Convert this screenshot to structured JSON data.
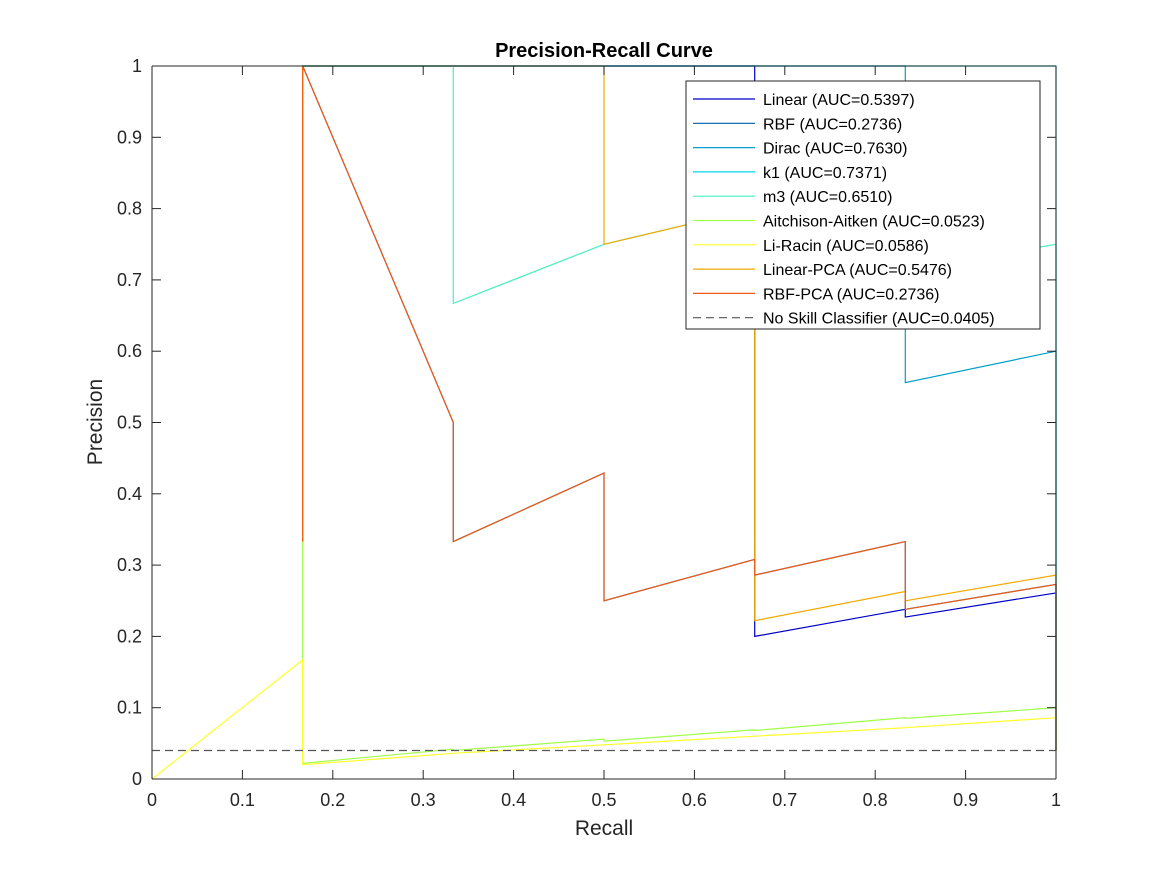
{
  "chart_data": {
    "type": "line",
    "title": "Precision-Recall Curve",
    "xlabel": "Recall",
    "ylabel": "Precision",
    "xlim": [
      0,
      1
    ],
    "ylim": [
      0,
      1
    ],
    "xticks": [
      "0",
      "0.1",
      "0.2",
      "0.3",
      "0.4",
      "0.5",
      "0.6",
      "0.7",
      "0.8",
      "0.9",
      "1"
    ],
    "yticks": [
      "0",
      "0.1",
      "0.2",
      "0.3",
      "0.4",
      "0.5",
      "0.6",
      "0.7",
      "0.8",
      "0.9",
      "1"
    ],
    "grid": false,
    "legend_position": "top-right",
    "series": [
      {
        "name": "Linear (AUC=0.5397)",
        "color": "#0000c8",
        "dash": false,
        "x": [
          0.1667,
          0.1667,
          0.3333,
          0.3333,
          0.5,
          0.5,
          0.6667,
          0.6667,
          0.8333,
          0.8333,
          1.0,
          1.0
        ],
        "y": [
          0.333,
          1.0,
          1.0,
          1.0,
          1.0,
          1.0,
          1.0,
          0.2,
          0.238,
          0.227,
          0.261,
          0.04
        ]
      },
      {
        "name": "RBF (AUC=0.2736)",
        "color": "#005faa",
        "dash": false,
        "x": [
          0.1667,
          0.1667,
          0.3333,
          0.3333,
          0.5,
          0.5,
          0.6667,
          0.6667,
          0.8333,
          0.8333,
          1.0,
          1.0
        ],
        "y": [
          0.333,
          1.0,
          0.5,
          0.333,
          0.429,
          0.25,
          0.308,
          0.286,
          0.333,
          0.238,
          0.273,
          0.04
        ]
      },
      {
        "name": "Dirac (AUC=0.7630)",
        "color": "#00a0c8",
        "dash": false,
        "x": [
          0.1667,
          0.1667,
          0.3333,
          0.3333,
          0.5,
          0.5,
          0.6667,
          0.6667,
          0.8333,
          0.8333,
          1.0,
          1.0
        ],
        "y": [
          0.333,
          1.0,
          1.0,
          1.0,
          1.0,
          1.0,
          1.0,
          1.0,
          1.0,
          0.556,
          0.6,
          0.04
        ]
      },
      {
        "name": "k1 (AUC=0.7371)",
        "color": "#00d7e6",
        "dash": false,
        "x": [
          0.1667,
          0.1667,
          0.3333,
          0.3333,
          0.5,
          0.5,
          0.6667,
          0.6667,
          0.8333,
          0.8333,
          1.0,
          1.0
        ],
        "y": [
          0.333,
          1.0,
          1.0,
          1.0,
          1.0,
          1.0,
          1.0,
          1.0,
          1.0,
          1.0,
          1.0,
          0.04
        ]
      },
      {
        "name": "m3 (AUC=0.6510)",
        "color": "#46f0be",
        "dash": false,
        "x": [
          0.1667,
          0.1667,
          0.3333,
          0.3333,
          0.5,
          0.5,
          0.6667,
          0.6667,
          0.8333,
          0.8333,
          1.0,
          1.0
        ],
        "y": [
          0.333,
          1.0,
          1.0,
          0.667,
          0.75,
          0.75,
          0.8,
          0.8,
          0.833,
          0.714,
          0.75,
          0.04
        ]
      },
      {
        "name": "Aitchison-Aitken (AUC=0.0523)",
        "color": "#a0ff46",
        "dash": false,
        "x": [
          0.1667,
          0.1667,
          0.3333,
          0.3333,
          0.5,
          0.5,
          0.6667,
          0.6667,
          0.8333,
          0.8333,
          1.0,
          1.0
        ],
        "y": [
          0.333,
          0.022,
          0.042,
          0.04,
          0.056,
          0.053,
          0.069,
          0.068,
          0.086,
          0.085,
          0.1,
          0.04
        ]
      },
      {
        "name": "Li-Racin (AUC=0.0586)",
        "color": "#ffff28",
        "dash": false,
        "x": [
          0.0,
          0.1667,
          0.1667,
          0.3333,
          0.5,
          0.6667,
          0.8333,
          1.0
        ],
        "y": [
          0.0,
          0.167,
          0.02,
          0.036,
          0.048,
          0.06,
          0.072,
          0.086
        ]
      },
      {
        "name": "Linear-PCA (AUC=0.5476)",
        "color": "#f0aa00",
        "dash": false,
        "x": [
          0.1667,
          0.1667,
          0.3333,
          0.3333,
          0.5,
          0.5,
          0.6667,
          0.6667,
          0.8333,
          0.8333,
          1.0,
          1.0
        ],
        "y": [
          0.333,
          1.0,
          1.0,
          1.0,
          1.0,
          0.75,
          0.8,
          0.222,
          0.263,
          0.25,
          0.286,
          0.04
        ]
      },
      {
        "name": "RBF-PCA (AUC=0.2736)",
        "color": "#f05a14",
        "dash": false,
        "x": [
          0.1667,
          0.1667,
          0.3333,
          0.3333,
          0.5,
          0.5,
          0.6667,
          0.6667,
          0.8333,
          0.8333,
          1.0,
          1.0
        ],
        "y": [
          0.333,
          1.0,
          0.5,
          0.333,
          0.429,
          0.25,
          0.308,
          0.286,
          0.333,
          0.238,
          0.273,
          0.04
        ]
      },
      {
        "name": "No Skill Classifier (AUC=0.0405)",
        "color": "#000000",
        "dash": true,
        "x": [
          0.0,
          1.0
        ],
        "y": [
          0.04,
          0.04
        ]
      }
    ]
  }
}
